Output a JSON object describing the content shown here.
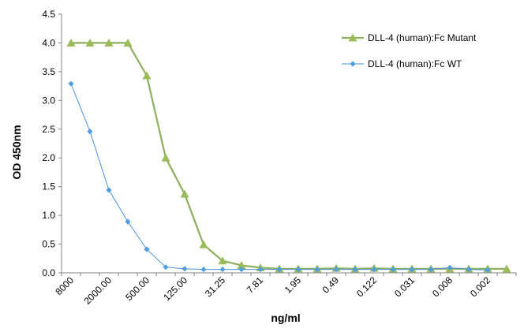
{
  "chart_data": {
    "type": "line",
    "xlabel": "ng/ml",
    "ylabel": "OD 450nm",
    "ylim": [
      0,
      4.5
    ],
    "ytick_step": 0.5,
    "ytick_labels": [
      "0.0",
      "0.5",
      "1.0",
      "1.5",
      "2.0",
      "2.5",
      "3.0",
      "3.5",
      "4.0",
      "4.5"
    ],
    "x_tick_labels": [
      "8000",
      "2000.00",
      "500.00",
      "125.00",
      "31.25",
      "7.81",
      "1.95",
      "0.49",
      "0.122",
      "0.031",
      "0.008",
      "0.002"
    ],
    "x_tick_positions": [
      0,
      2,
      4,
      6,
      8,
      10,
      12,
      14,
      16,
      18,
      20,
      22
    ],
    "grid": false,
    "legend_position": "top-right",
    "series": [
      {
        "name": "DLL-4 (human):Fc Mutant",
        "color": "#9bbb59",
        "line_color": "#8fb060",
        "marker": "triangle",
        "values": [
          4.0,
          4.0,
          4.0,
          4.0,
          3.43,
          2.0,
          1.37,
          0.49,
          0.21,
          0.13,
          0.09,
          0.07,
          0.07,
          0.07,
          0.08,
          0.07,
          0.08,
          0.07,
          0.07,
          0.07,
          0.07,
          0.07,
          0.07,
          0.07
        ]
      },
      {
        "name": "DLL-4 (human):Fc WT",
        "color": "#4f9fdf",
        "line_color": "#4a90d9",
        "marker": "diamond",
        "values": [
          3.29,
          2.46,
          1.44,
          0.89,
          0.41,
          0.1,
          0.07,
          0.06,
          0.06,
          0.06,
          0.06,
          0.06,
          0.06,
          0.06,
          0.06,
          0.06,
          0.06,
          0.06,
          0.06,
          0.06,
          0.09,
          0.06,
          0.05,
          null
        ]
      }
    ]
  }
}
